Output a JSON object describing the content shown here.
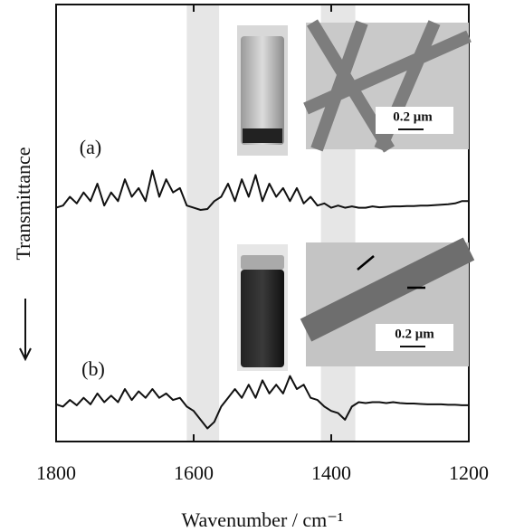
{
  "chart_data": {
    "type": "line",
    "xlabel": "Wavenumber / cm⁻¹",
    "ylabel": "Transmittance",
    "xlim": [
      1800,
      1200
    ],
    "xticks": [
      1800,
      1600,
      1400,
      1200
    ],
    "ylim": [
      0,
      100
    ],
    "shaded_regions": [
      [
        1610,
        1563
      ],
      [
        1415,
        1365
      ]
    ],
    "annotations": [
      "(a)",
      "(b)"
    ],
    "insets": [
      {
        "scale_label": "0.2 μm"
      },
      {
        "scale_label": "0.2 μm"
      }
    ],
    "x": [
      1800,
      1790,
      1780,
      1770,
      1760,
      1750,
      1740,
      1730,
      1720,
      1710,
      1700,
      1690,
      1680,
      1670,
      1660,
      1650,
      1640,
      1630,
      1620,
      1610,
      1600,
      1590,
      1580,
      1570,
      1560,
      1550,
      1540,
      1530,
      1520,
      1510,
      1500,
      1490,
      1480,
      1470,
      1460,
      1450,
      1440,
      1430,
      1420,
      1410,
      1400,
      1390,
      1380,
      1370,
      1360,
      1350,
      1340,
      1330,
      1320,
      1310,
      1300,
      1290,
      1280,
      1270,
      1260,
      1250,
      1240,
      1230,
      1220,
      1210,
      1200
    ],
    "series": [
      {
        "color": "#111111",
        "values": [
          53.5,
          54,
          56,
          54.5,
          57,
          55,
          59,
          54,
          57,
          55,
          60,
          56,
          58,
          55,
          62,
          56,
          60,
          57,
          58,
          54,
          53.5,
          53,
          53.2,
          55,
          56,
          59,
          55,
          60,
          56,
          61,
          55,
          59,
          56,
          58,
          55,
          58,
          54.5,
          56,
          54,
          54.5,
          53.5,
          54,
          53.5,
          53.8,
          53.5,
          53.5,
          53.8,
          53.6,
          53.7,
          53.8,
          53.8,
          53.9,
          53.9,
          54,
          54,
          54.1,
          54.2,
          54.3,
          54.5,
          55,
          55
        ]
      },
      {
        "color": "#111111",
        "values": [
          8.5,
          8,
          9.5,
          8.3,
          10,
          8.5,
          11,
          9,
          10.5,
          9,
          12,
          9.5,
          11.5,
          10,
          12,
          10,
          11,
          9.5,
          10,
          8,
          7,
          5,
          3,
          4.5,
          8,
          10,
          12,
          10,
          13,
          10,
          14,
          11,
          13,
          11,
          15,
          12,
          13,
          10,
          9.5,
          8,
          7,
          6.5,
          5,
          8,
          9,
          8.8,
          9,
          9,
          8.8,
          9,
          8.8,
          8.7,
          8.7,
          8.6,
          8.5,
          8.5,
          8.5,
          8.4,
          8.4,
          8.3,
          8.3
        ]
      }
    ]
  }
}
